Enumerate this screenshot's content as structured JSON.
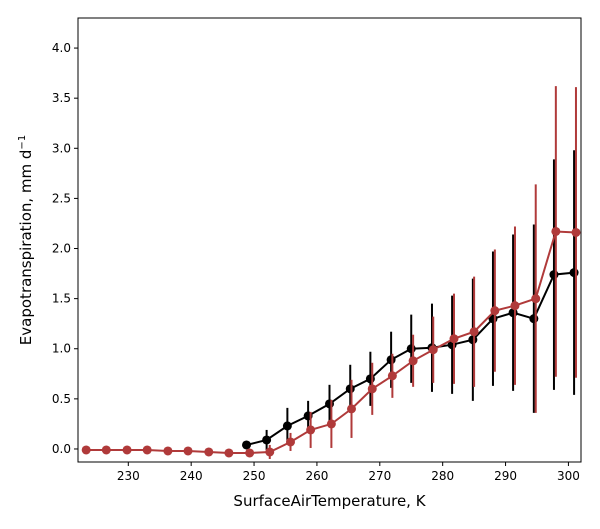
{
  "chart_data": {
    "type": "line",
    "title": "",
    "xlabel": "SurfaceAirTemperature,  K",
    "ylabel": "Evapotranspiration,  mm d",
    "ylabel_superscript": "−1",
    "xlim": [
      222,
      302
    ],
    "ylim": [
      -0.13,
      4.3
    ],
    "xticks": [
      230,
      240,
      250,
      260,
      270,
      280,
      290,
      300
    ],
    "yticks": [
      0.0,
      0.5,
      1.0,
      1.5,
      2.0,
      2.5,
      3.0,
      3.5,
      4.0
    ],
    "ytick_labels": [
      "0.0",
      "0.5",
      "1.0",
      "1.5",
      "2.0",
      "2.5",
      "3.0",
      "3.5",
      "4.0"
    ],
    "grid": false,
    "legend": "none",
    "series": [
      {
        "name": "black series",
        "color": "#000000",
        "x": [
          248.8,
          252.0,
          255.3,
          258.6,
          262.0,
          265.3,
          268.5,
          271.8,
          275.0,
          278.3,
          281.5,
          284.8,
          288.0,
          291.2,
          294.5,
          297.7,
          300.9
        ],
        "y": [
          0.04,
          0.09,
          0.23,
          0.33,
          0.45,
          0.6,
          0.7,
          0.89,
          1.0,
          1.01,
          1.04,
          1.09,
          1.3,
          1.36,
          1.3,
          1.74,
          1.76
        ],
        "err": [
          0.0,
          0.1,
          0.18,
          0.15,
          0.19,
          0.24,
          0.27,
          0.28,
          0.34,
          0.44,
          0.49,
          0.61,
          0.67,
          0.78,
          0.94,
          1.15,
          1.22
        ]
      },
      {
        "name": "red series",
        "color": "#b03a3a",
        "x": [
          223.3,
          226.5,
          229.8,
          233.0,
          236.3,
          239.5,
          242.8,
          246.0,
          249.3,
          252.5,
          255.8,
          259.0,
          262.3,
          265.5,
          268.8,
          272.0,
          275.3,
          278.5,
          281.8,
          285.0,
          288.3,
          291.5,
          294.8,
          298.0,
          301.2
        ],
        "y": [
          -0.01,
          -0.01,
          -0.01,
          -0.01,
          -0.02,
          -0.02,
          -0.03,
          -0.04,
          -0.04,
          -0.03,
          0.07,
          0.19,
          0.25,
          0.4,
          0.6,
          0.73,
          0.88,
          0.99,
          1.1,
          1.17,
          1.38,
          1.43,
          1.5,
          2.17,
          2.16
        ],
        "err": [
          0,
          0,
          0,
          0,
          0,
          0,
          0,
          0,
          0,
          0.07,
          0.09,
          0.18,
          0.24,
          0.29,
          0.26,
          0.22,
          0.26,
          0.33,
          0.45,
          0.55,
          0.61,
          0.79,
          1.14,
          1.45,
          1.45
        ]
      }
    ]
  }
}
